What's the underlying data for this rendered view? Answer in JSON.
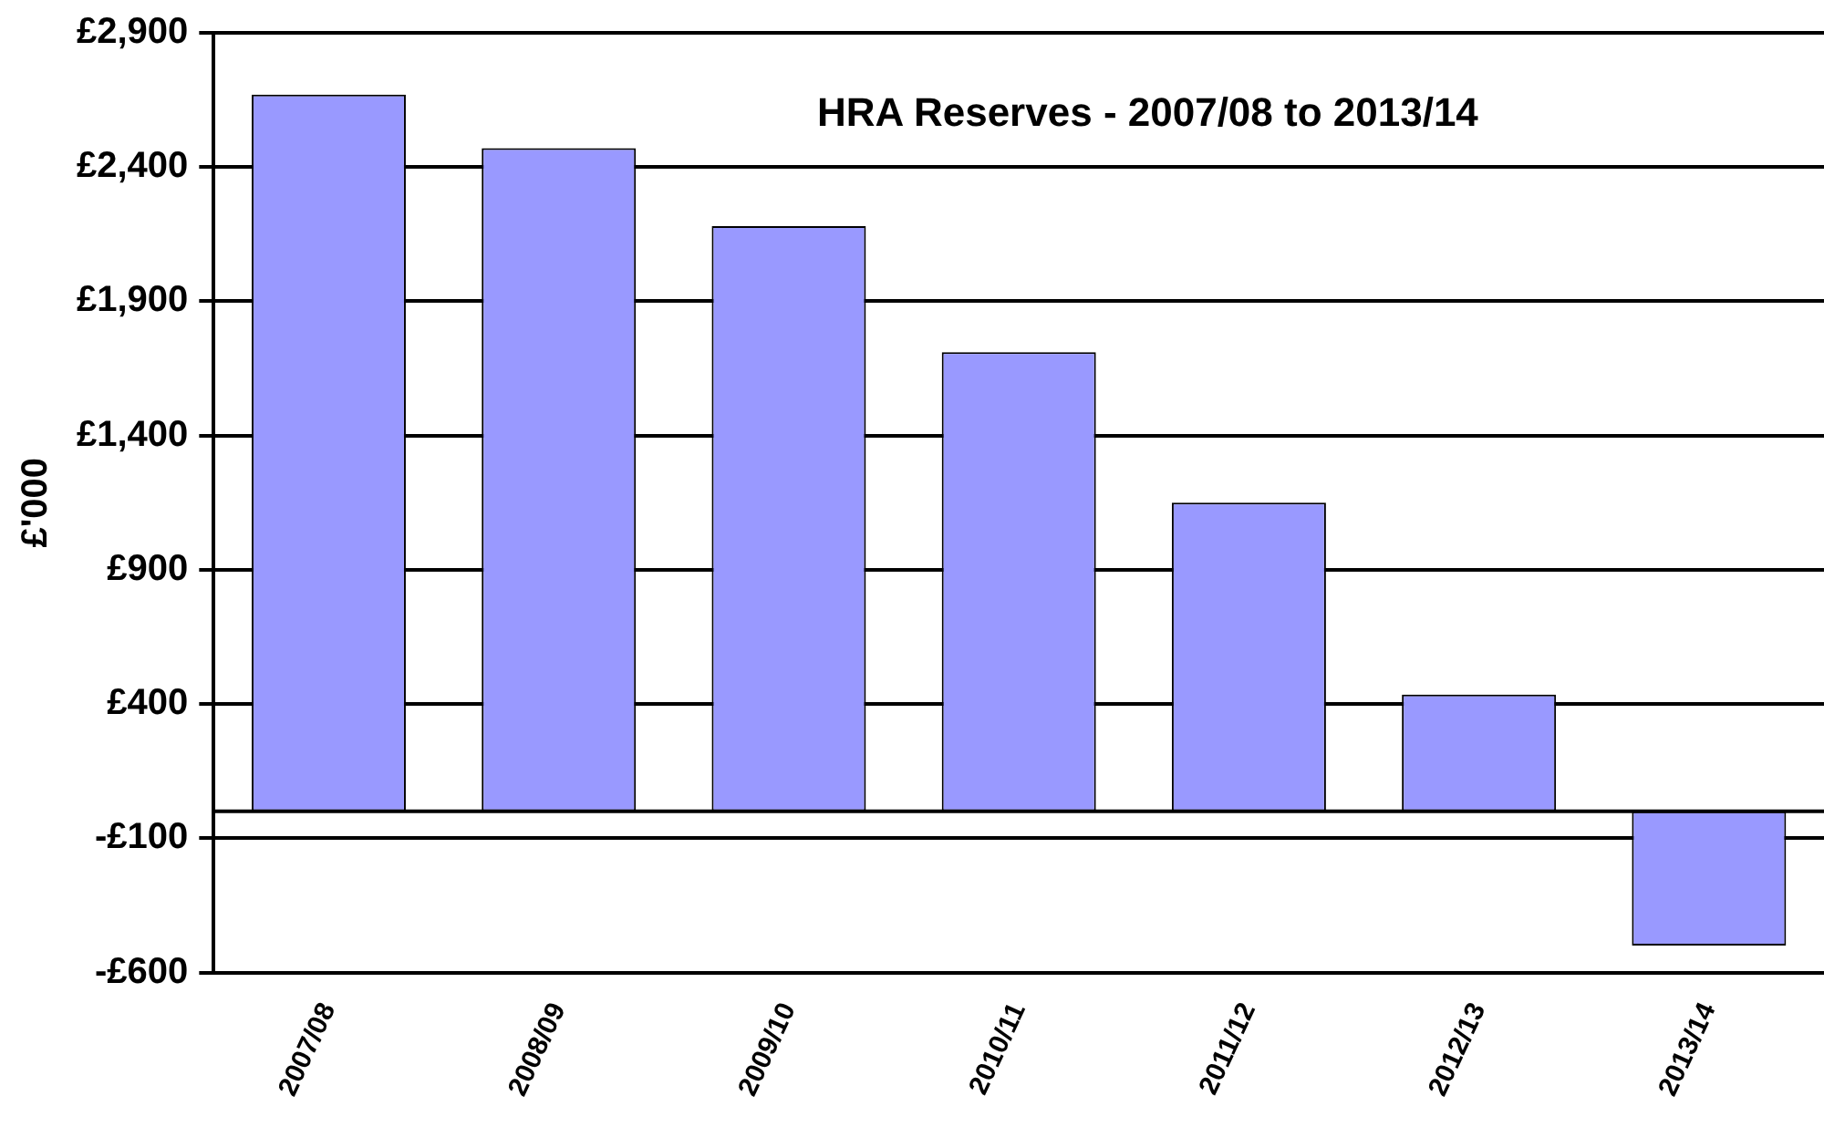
{
  "chart_data": {
    "type": "bar",
    "title": "HRA Reserves - 2007/08 to 2013/14",
    "ylabel": "£'000",
    "categories": [
      "2007/08",
      "2008/09",
      "2009/10",
      "2010/11",
      "2011/12",
      "2012/13",
      "2013/14"
    ],
    "values": [
      2670,
      2470,
      2180,
      1710,
      1150,
      435,
      -500
    ],
    "color": "#9999ff",
    "ylim": [
      -600,
      2900
    ],
    "yticks": [
      {
        "value": -600,
        "label": "-£600"
      },
      {
        "value": -100,
        "label": "-£100"
      },
      {
        "value": 400,
        "label": "£400"
      },
      {
        "value": 900,
        "label": "£900"
      },
      {
        "value": 1400,
        "label": "£1,400"
      },
      {
        "value": 1900,
        "label": "£1,900"
      },
      {
        "value": 2400,
        "label": "£2,400"
      },
      {
        "value": 2900,
        "label": "£2,900"
      }
    ],
    "grid": "y",
    "legend": false
  }
}
